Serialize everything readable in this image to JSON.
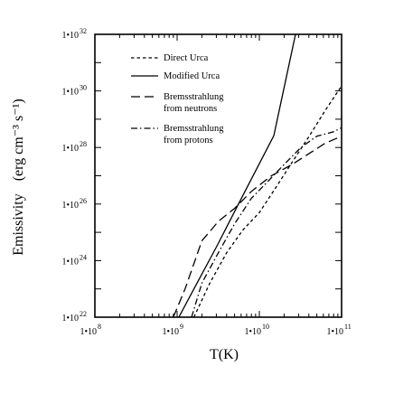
{
  "chart_data": {
    "type": "line",
    "title": "",
    "xlabel": "T(K)",
    "ylabel": "Emissivity",
    "ylabel_units": "(erg cm⁻³ s⁻¹)",
    "x_scale": "log",
    "y_scale": "log",
    "xlim": [
      100000000.0,
      100000000000.0
    ],
    "ylim": [
      1e+22,
      1e+32
    ],
    "x_ticks": [
      {
        "value": 100000000.0,
        "mantissa": "1•10",
        "exponent": "8"
      },
      {
        "value": 1000000000.0,
        "mantissa": "1•10",
        "exponent": "9"
      },
      {
        "value": 10000000000.0,
        "mantissa": "1•10",
        "exponent": "10"
      },
      {
        "value": 100000000000.0,
        "mantissa": "1•10",
        "exponent": "11"
      }
    ],
    "y_ticks": [
      {
        "value": 1e+22,
        "mantissa": "1•10",
        "exponent": "22"
      },
      {
        "value": 1e+24,
        "mantissa": "1•10",
        "exponent": "24"
      },
      {
        "value": 1e+26,
        "mantissa": "1•10",
        "exponent": "26"
      },
      {
        "value": 1e+28,
        "mantissa": "1•10",
        "exponent": "28"
      },
      {
        "value": 1e+30,
        "mantissa": "1•10",
        "exponent": "30"
      },
      {
        "value": 1e+32,
        "mantissa": "1•10",
        "exponent": "32"
      }
    ],
    "y_minor_ticks": [
      1e+23,
      1e+25,
      1e+27,
      1e+29,
      1e+31
    ],
    "grid": false,
    "legend_position": "top-left",
    "series": [
      {
        "name": "Direct Urca",
        "legend": [
          "Direct Urca"
        ],
        "dash": "short-dash",
        "x": [
          1600000000.0,
          2500000000.0,
          4000000000.0,
          6300000000.0,
          10000000000.0,
          16000000000.0,
          25000000000.0,
          40000000000.0,
          63000000000.0,
          100000000000.0
        ],
        "y": [
          1e+22,
          1.6e+23,
          1.9e+24,
          1.2e+25,
          5e+25,
          4e+26,
          3e+27,
          2.4e+28,
          2e+29,
          1.5e+30
        ]
      },
      {
        "name": "Modified Urca",
        "legend": [
          "Modified Urca"
        ],
        "dash": "solid",
        "x": [
          1050000000.0,
          1600000000.0,
          3000000000.0,
          6300000000.0,
          15000000000.0,
          27500000000.0
        ],
        "y": [
          1e+22,
          1e+23,
          3e+24,
          2e+26,
          2.6e+28,
          1e+32
        ]
      },
      {
        "name": "Bremsstrahlung from neutrons",
        "legend": [
          "Bremsstrahlung",
          "from neutrons"
        ],
        "dash": "long-dash",
        "x": [
          900000000.0,
          1250000000.0,
          2000000000.0,
          3200000000.0,
          5000000000.0,
          8000000000.0,
          14000000000.0,
          25000000000.0,
          40000000000.0,
          63000000000.0,
          100000000000.0
        ],
        "y": [
          1e+22,
          1e+23,
          5e+24,
          2.5e+25,
          7e+25,
          2.8e+26,
          1e+27,
          2.5e+27,
          6e+27,
          1.4e+28,
          2.5e+28
        ]
      },
      {
        "name": "Bremsstrahlung from protons",
        "legend": [
          "Bremsstrahlung",
          "from protons"
        ],
        "dash": "dash-dot",
        "x": [
          1500000000.0,
          2000000000.0,
          3200000000.0,
          5000000000.0,
          8000000000.0,
          12500000000.0,
          20000000000.0,
          32000000000.0,
          50000000000.0,
          80000000000.0,
          100000000000.0
        ],
        "y": [
          1e+22,
          1.6e+23,
          2e+24,
          2e+25,
          1.6e+26,
          6e+26,
          2.5e+27,
          1e+28,
          2.5e+28,
          3.6e+28,
          5e+28
        ]
      }
    ]
  }
}
